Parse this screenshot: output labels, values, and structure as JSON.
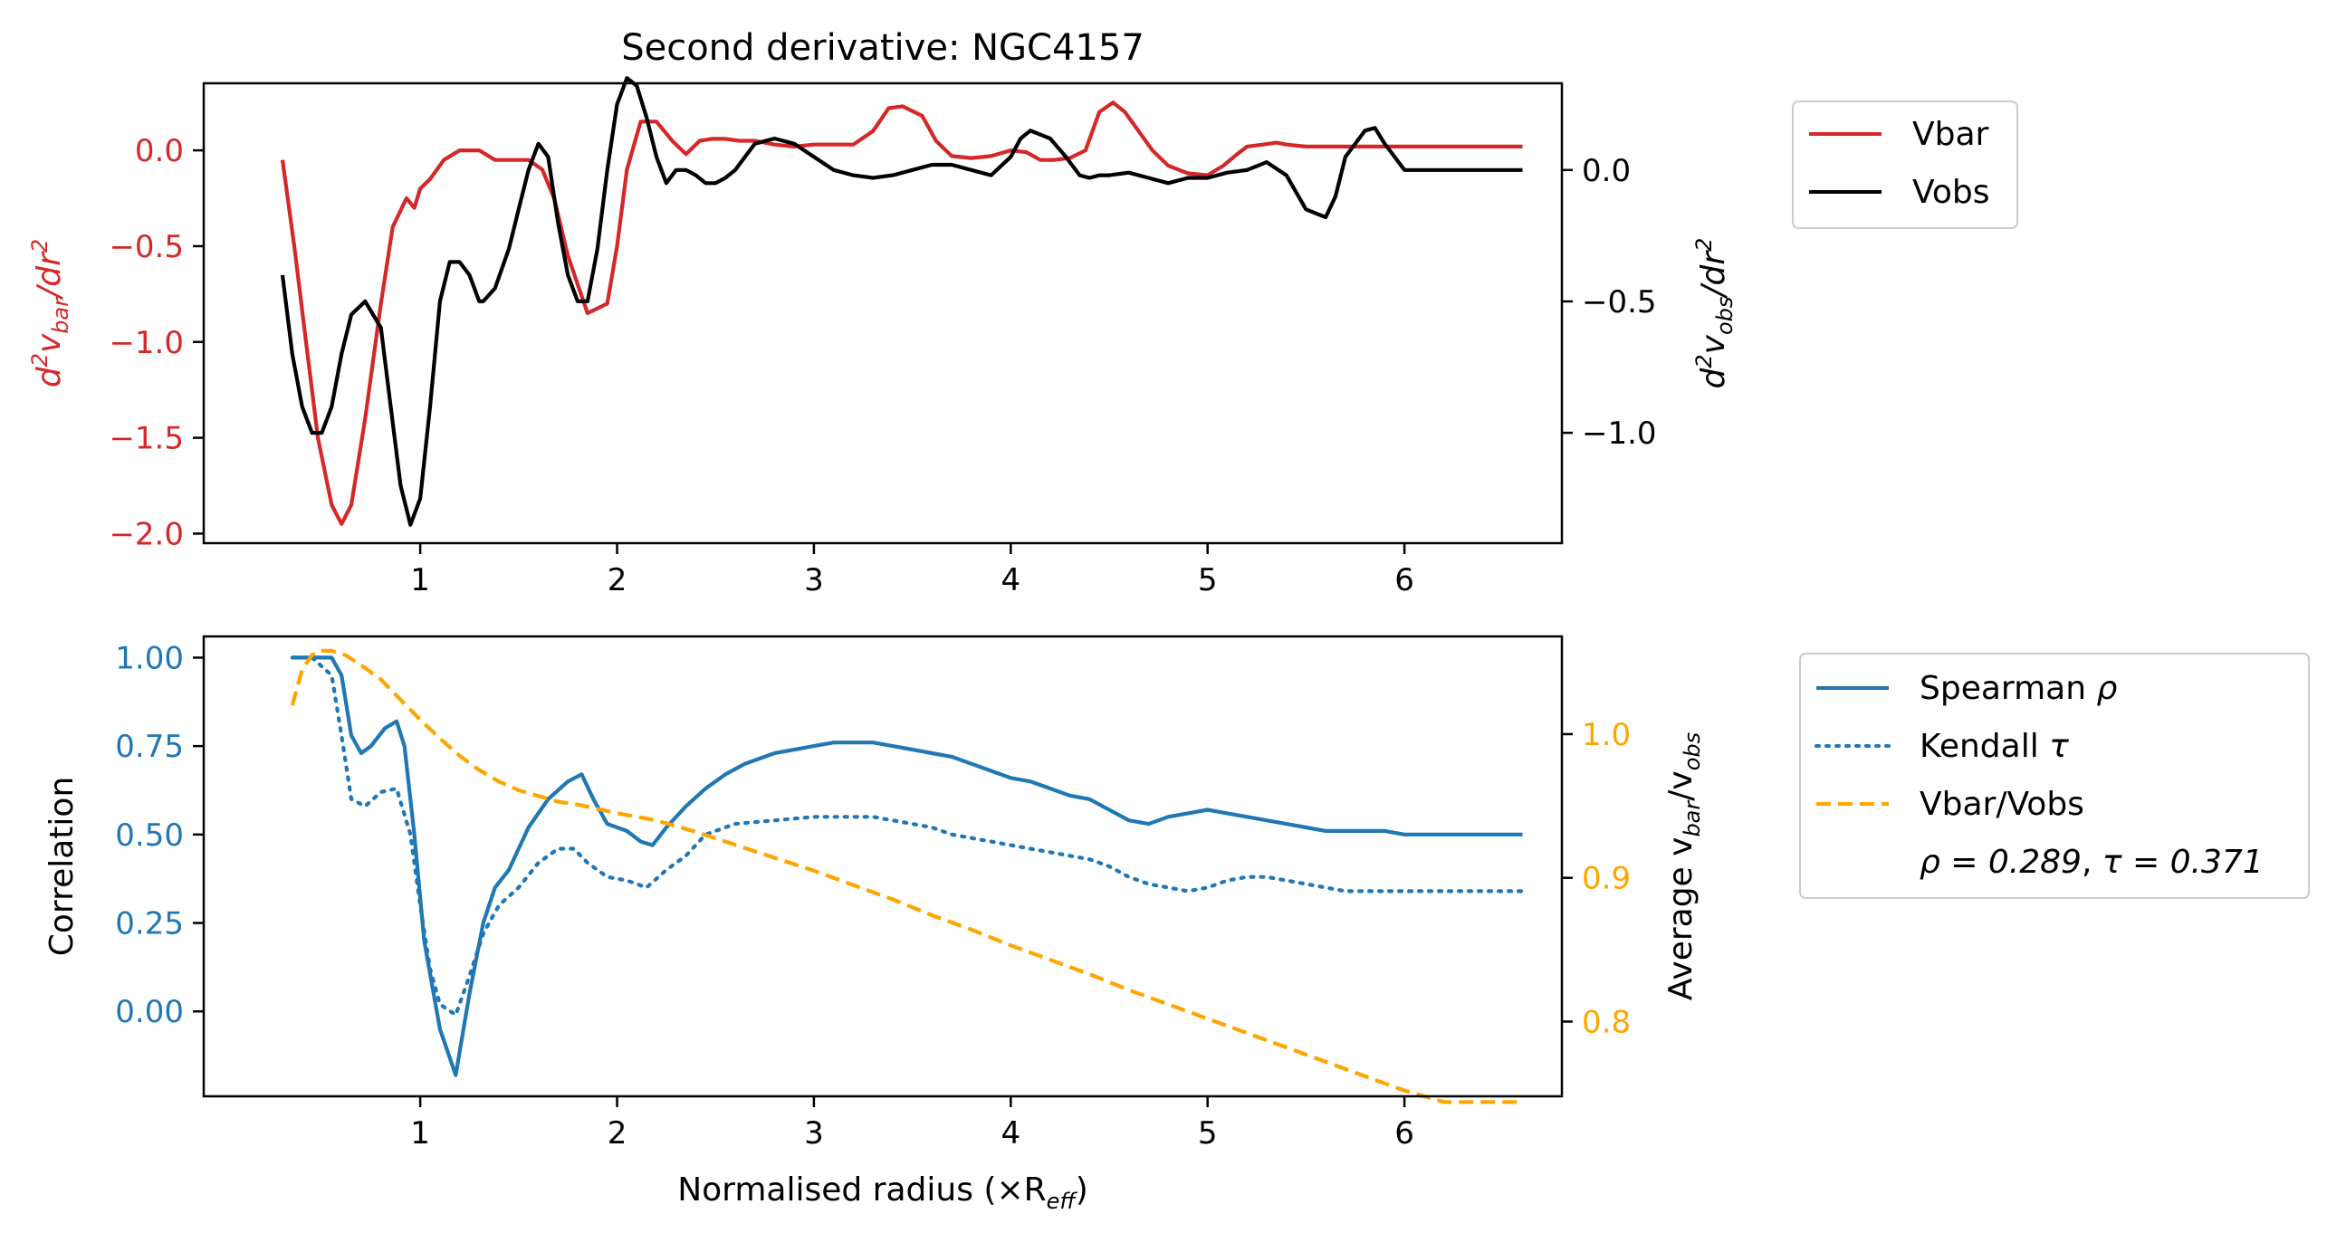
{
  "figure": {
    "title": "Second derivative: NGC4157",
    "xlabel": "Normalised radius (×R",
    "xlabel_sub": "eff",
    "xlabel_end": ")"
  },
  "colors": {
    "vbar": "#d62728",
    "vobs": "#000000",
    "spearman": "#1f77b4",
    "kendall": "#1f77b4",
    "ratio": "#ffa500"
  },
  "chart_data": [
    {
      "type": "line",
      "title": "Second derivative: NGC4157",
      "xlim": [
        -0.1,
        6.8
      ],
      "x_ticks": [
        1,
        2,
        3,
        4,
        5,
        6
      ],
      "left_axis": {
        "label": "d²v_bar/dr²",
        "label_main": "d",
        "label_sup1": "2",
        "label_v": "v",
        "label_sub": "bar",
        "label_tail": "/dr",
        "label_sup2": "2",
        "color": "#d62728",
        "ylim": [
          -2.05,
          0.35
        ],
        "ticks": [
          0.0,
          -0.5,
          -1.0,
          -1.5,
          -2.0
        ],
        "tick_labels": [
          "0.0",
          "−0.5",
          "−1.0",
          "−1.5",
          "−2.0"
        ]
      },
      "right_axis": {
        "label": "d²v_obs/dr²",
        "label_main": "d",
        "label_sup1": "2",
        "label_v": "v",
        "label_sub": "obs",
        "label_tail": "/dr",
        "label_sup2": "2",
        "color": "#000000",
        "ylim": [
          -1.42,
          0.33
        ],
        "ticks": [
          0.0,
          -0.5,
          -1.0
        ],
        "tick_labels": [
          "0.0",
          "−0.5",
          "−1.0"
        ]
      },
      "legend": {
        "placement": "outside-right-top",
        "entries": [
          "Vbar",
          "Vobs"
        ]
      },
      "series": [
        {
          "name": "Vbar",
          "axis": "left",
          "x": [
            0.3,
            0.36,
            0.42,
            0.48,
            0.55,
            0.6,
            0.65,
            0.72,
            0.8,
            0.86,
            0.93,
            0.97,
            1.0,
            1.05,
            1.12,
            1.2,
            1.3,
            1.38,
            1.45,
            1.55,
            1.62,
            1.68,
            1.75,
            1.85,
            1.95,
            2.0,
            2.05,
            2.12,
            2.2,
            2.28,
            2.35,
            2.42,
            2.48,
            2.55,
            2.62,
            2.7,
            2.8,
            2.9,
            3.0,
            3.1,
            3.2,
            3.3,
            3.38,
            3.45,
            3.55,
            3.62,
            3.7,
            3.8,
            3.9,
            4.0,
            4.08,
            4.15,
            4.22,
            4.3,
            4.38,
            4.45,
            4.52,
            4.58,
            4.65,
            4.72,
            4.8,
            4.9,
            5.0,
            5.08,
            5.15,
            5.2,
            5.28,
            5.35,
            5.4,
            5.5,
            5.6,
            5.7,
            5.8,
            5.9,
            6.0,
            6.1,
            6.2,
            6.3,
            6.4,
            6.5,
            6.6
          ],
          "values": [
            -0.05,
            -0.5,
            -1.0,
            -1.5,
            -1.85,
            -1.95,
            -1.85,
            -1.4,
            -0.8,
            -0.4,
            -0.25,
            -0.3,
            -0.2,
            -0.15,
            -0.05,
            0.0,
            0.0,
            -0.05,
            -0.05,
            -0.05,
            -0.1,
            -0.25,
            -0.55,
            -0.85,
            -0.8,
            -0.5,
            -0.1,
            0.15,
            0.15,
            0.05,
            -0.02,
            0.05,
            0.06,
            0.06,
            0.05,
            0.05,
            0.03,
            0.02,
            0.03,
            0.03,
            0.03,
            0.1,
            0.22,
            0.23,
            0.18,
            0.05,
            -0.03,
            -0.04,
            -0.03,
            0.0,
            -0.01,
            -0.05,
            -0.05,
            -0.04,
            0.0,
            0.2,
            0.25,
            0.2,
            0.1,
            0.0,
            -0.08,
            -0.12,
            -0.13,
            -0.08,
            -0.02,
            0.02,
            0.03,
            0.04,
            0.03,
            0.02,
            0.02,
            0.02,
            0.02,
            0.02,
            0.02,
            0.02,
            0.02,
            0.02,
            0.02,
            0.02,
            0.02
          ]
        },
        {
          "name": "Vobs",
          "axis": "right",
          "x": [
            0.3,
            0.35,
            0.4,
            0.45,
            0.5,
            0.55,
            0.6,
            0.65,
            0.72,
            0.8,
            0.85,
            0.9,
            0.95,
            1.0,
            1.05,
            1.1,
            1.15,
            1.2,
            1.25,
            1.3,
            1.32,
            1.38,
            1.45,
            1.5,
            1.55,
            1.6,
            1.65,
            1.7,
            1.75,
            1.8,
            1.85,
            1.9,
            1.95,
            2.0,
            2.05,
            2.1,
            2.15,
            2.2,
            2.25,
            2.3,
            2.35,
            2.4,
            2.45,
            2.5,
            2.55,
            2.6,
            2.65,
            2.7,
            2.8,
            2.9,
            3.0,
            3.1,
            3.2,
            3.3,
            3.4,
            3.5,
            3.6,
            3.7,
            3.8,
            3.9,
            4.0,
            4.05,
            4.1,
            4.2,
            4.28,
            4.35,
            4.4,
            4.45,
            4.5,
            4.6,
            4.7,
            4.8,
            4.9,
            5.0,
            5.1,
            5.2,
            5.3,
            5.4,
            5.5,
            5.6,
            5.65,
            5.7,
            5.8,
            5.85,
            5.9,
            5.95,
            6.0,
            6.05,
            6.1,
            6.2,
            6.3,
            6.4,
            6.5,
            6.6
          ],
          "values": [
            -0.4,
            -0.7,
            -0.9,
            -1.0,
            -1.0,
            -0.9,
            -0.7,
            -0.55,
            -0.5,
            -0.6,
            -0.9,
            -1.2,
            -1.35,
            -1.25,
            -0.9,
            -0.5,
            -0.35,
            -0.35,
            -0.4,
            -0.5,
            -0.5,
            -0.45,
            -0.3,
            -0.15,
            0.0,
            0.1,
            0.05,
            -0.2,
            -0.4,
            -0.5,
            -0.5,
            -0.3,
            0.0,
            0.25,
            0.35,
            0.32,
            0.2,
            0.05,
            -0.05,
            0.0,
            0.0,
            -0.02,
            -0.05,
            -0.05,
            -0.03,
            0.0,
            0.05,
            0.1,
            0.12,
            0.1,
            0.05,
            0.0,
            -0.02,
            -0.03,
            -0.02,
            0.0,
            0.02,
            0.02,
            0.0,
            -0.02,
            0.05,
            0.12,
            0.15,
            0.12,
            0.05,
            -0.02,
            -0.03,
            -0.02,
            -0.02,
            -0.01,
            -0.03,
            -0.05,
            -0.03,
            -0.03,
            -0.01,
            0.0,
            0.03,
            -0.02,
            -0.15,
            -0.18,
            -0.1,
            0.05,
            0.15,
            0.16,
            0.1,
            0.05,
            0.0,
            0.0,
            0.0,
            0.0,
            0.0,
            0.0,
            0.0,
            0.0
          ]
        }
      ]
    },
    {
      "type": "line",
      "xlim": [
        -0.1,
        6.8
      ],
      "x_ticks": [
        1,
        2,
        3,
        4,
        5,
        6
      ],
      "left_axis": {
        "label": "Correlation",
        "color": "#1f77b4",
        "ylim": [
          -0.24,
          1.06
        ],
        "ticks": [
          1.0,
          0.75,
          0.5,
          0.25,
          0.0
        ],
        "tick_labels": [
          "1.00",
          "0.75",
          "0.50",
          "0.25",
          "0.00"
        ]
      },
      "right_axis": {
        "label": "Average v_bar/v_obs",
        "label_main": "Average v",
        "label_sub1": "bar",
        "label_mid": "/v",
        "label_sub2": "obs",
        "color": "#ffa500",
        "ylim": [
          0.748,
          1.068
        ],
        "ticks": [
          1.0,
          0.9,
          0.8
        ],
        "tick_labels": [
          "1.0",
          "0.9",
          "0.8"
        ]
      },
      "legend": {
        "placement": "outside-right-top",
        "entries": [
          "Spearman ρ",
          "Kendall τ",
          "Vbar/Vobs"
        ],
        "entry_spearman_main": "Spearman ",
        "entry_spearman_sym": "ρ",
        "entry_kendall_main": "Kendall ",
        "entry_kendall_sym": "τ",
        "stats_text_a": "ρ = 0.289",
        "stats_text_b": "τ = 0.371"
      },
      "series": [
        {
          "name": "Spearman ρ",
          "axis": "left",
          "x": [
            0.35,
            0.45,
            0.55,
            0.6,
            0.65,
            0.7,
            0.75,
            0.82,
            0.88,
            0.92,
            0.97,
            1.02,
            1.1,
            1.18,
            1.25,
            1.32,
            1.38,
            1.45,
            1.55,
            1.65,
            1.75,
            1.82,
            1.88,
            1.95,
            2.05,
            2.12,
            2.18,
            2.25,
            2.35,
            2.45,
            2.55,
            2.65,
            2.8,
            3.0,
            3.1,
            3.2,
            3.3,
            3.4,
            3.5,
            3.6,
            3.7,
            3.8,
            3.9,
            4.0,
            4.1,
            4.2,
            4.3,
            4.4,
            4.5,
            4.6,
            4.7,
            4.8,
            4.9,
            5.0,
            5.1,
            5.2,
            5.3,
            5.4,
            5.5,
            5.6,
            5.7,
            5.8,
            5.9,
            6.0,
            6.1,
            6.2,
            6.3,
            6.4,
            6.5,
            6.6
          ],
          "values": [
            1.0,
            1.0,
            1.0,
            0.95,
            0.78,
            0.73,
            0.75,
            0.8,
            0.82,
            0.75,
            0.5,
            0.2,
            -0.05,
            -0.18,
            0.05,
            0.25,
            0.35,
            0.4,
            0.52,
            0.6,
            0.65,
            0.67,
            0.6,
            0.53,
            0.51,
            0.48,
            0.47,
            0.52,
            0.58,
            0.63,
            0.67,
            0.7,
            0.73,
            0.75,
            0.76,
            0.76,
            0.76,
            0.75,
            0.74,
            0.73,
            0.72,
            0.7,
            0.68,
            0.66,
            0.65,
            0.63,
            0.61,
            0.6,
            0.57,
            0.54,
            0.53,
            0.55,
            0.56,
            0.57,
            0.56,
            0.55,
            0.54,
            0.53,
            0.52,
            0.51,
            0.51,
            0.51,
            0.51,
            0.5,
            0.5,
            0.5,
            0.5,
            0.5,
            0.5,
            0.5
          ]
        },
        {
          "name": "Kendall τ",
          "axis": "left",
          "x": [
            0.35,
            0.45,
            0.55,
            0.6,
            0.65,
            0.72,
            0.8,
            0.88,
            0.95,
            1.0,
            1.05,
            1.1,
            1.18,
            1.25,
            1.32,
            1.4,
            1.5,
            1.6,
            1.7,
            1.78,
            1.85,
            1.95,
            2.05,
            2.15,
            2.25,
            2.35,
            2.45,
            2.6,
            2.8,
            3.0,
            3.1,
            3.2,
            3.3,
            3.4,
            3.5,
            3.6,
            3.7,
            3.8,
            3.9,
            4.0,
            4.1,
            4.2,
            4.3,
            4.4,
            4.5,
            4.6,
            4.7,
            4.8,
            4.9,
            5.0,
            5.1,
            5.2,
            5.3,
            5.4,
            5.5,
            5.6,
            5.7,
            5.8,
            5.9,
            6.0,
            6.1,
            6.2,
            6.3,
            6.4,
            6.5,
            6.6
          ],
          "values": [
            1.0,
            1.0,
            0.95,
            0.78,
            0.6,
            0.58,
            0.62,
            0.63,
            0.5,
            0.3,
            0.12,
            0.02,
            -0.01,
            0.1,
            0.22,
            0.3,
            0.35,
            0.42,
            0.46,
            0.46,
            0.42,
            0.38,
            0.37,
            0.35,
            0.4,
            0.44,
            0.5,
            0.53,
            0.54,
            0.55,
            0.55,
            0.55,
            0.55,
            0.54,
            0.53,
            0.52,
            0.5,
            0.49,
            0.48,
            0.47,
            0.46,
            0.45,
            0.44,
            0.43,
            0.41,
            0.38,
            0.36,
            0.35,
            0.34,
            0.35,
            0.37,
            0.38,
            0.38,
            0.37,
            0.36,
            0.35,
            0.34,
            0.34,
            0.34,
            0.34,
            0.34,
            0.34,
            0.34,
            0.34,
            0.34,
            0.34
          ]
        },
        {
          "name": "Vbar/Vobs",
          "axis": "right",
          "x": [
            0.35,
            0.4,
            0.45,
            0.5,
            0.55,
            0.62,
            0.7,
            0.8,
            0.9,
            1.0,
            1.1,
            1.2,
            1.3,
            1.4,
            1.5,
            1.6,
            1.7,
            1.8,
            2.0,
            2.2,
            2.4,
            2.6,
            2.8,
            3.0,
            3.2,
            3.4,
            3.6,
            3.8,
            4.0,
            4.2,
            4.4,
            4.6,
            4.8,
            5.0,
            5.2,
            5.4,
            5.6,
            5.8,
            6.0,
            6.2,
            6.4,
            6.6
          ],
          "values": [
            1.02,
            1.045,
            1.055,
            1.058,
            1.058,
            1.055,
            1.048,
            1.038,
            1.024,
            1.01,
            0.997,
            0.985,
            0.975,
            0.967,
            0.961,
            0.957,
            0.953,
            0.951,
            0.945,
            0.94,
            0.932,
            0.923,
            0.914,
            0.905,
            0.895,
            0.885,
            0.874,
            0.864,
            0.853,
            0.843,
            0.833,
            0.822,
            0.812,
            0.802,
            0.792,
            0.782,
            0.772,
            0.762,
            0.752,
            0.744,
            0.744,
            0.744
          ]
        }
      ]
    }
  ]
}
